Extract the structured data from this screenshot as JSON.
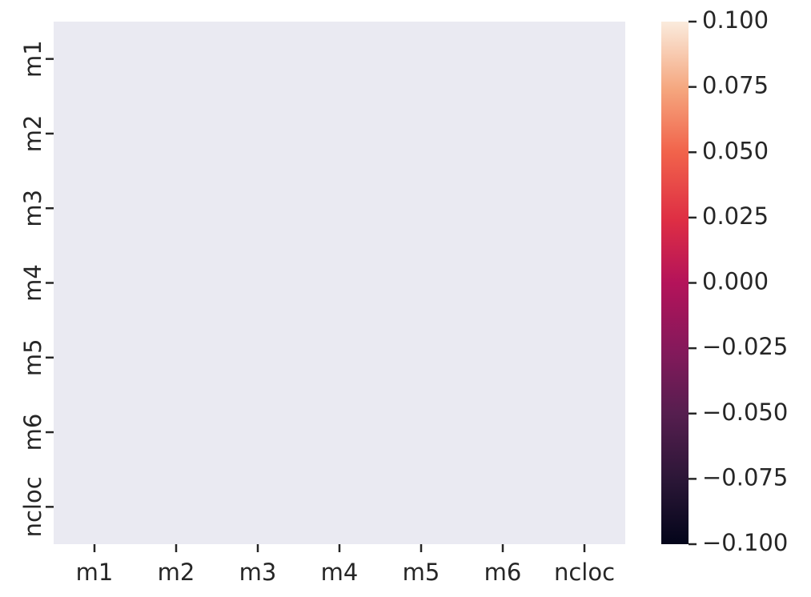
{
  "chart_data": {
    "type": "heatmap",
    "title": "",
    "xlabel": "",
    "ylabel": "",
    "x_categories": [
      "m1",
      "m2",
      "m3",
      "m4",
      "m5",
      "m6",
      "ncloc"
    ],
    "y_categories": [
      "m1",
      "m2",
      "m3",
      "m4",
      "m5",
      "m6",
      "ncloc"
    ],
    "values": [
      [
        null,
        null,
        null,
        null,
        null,
        null,
        null
      ],
      [
        null,
        null,
        null,
        null,
        null,
        null,
        null
      ],
      [
        null,
        null,
        null,
        null,
        null,
        null,
        null
      ],
      [
        null,
        null,
        null,
        null,
        null,
        null,
        null
      ],
      [
        null,
        null,
        null,
        null,
        null,
        null,
        null
      ],
      [
        null,
        null,
        null,
        null,
        null,
        null,
        null
      ],
      [
        null,
        null,
        null,
        null,
        null,
        null,
        null
      ]
    ],
    "colorbar": {
      "range": [
        -0.1,
        0.1
      ],
      "ticks": [
        0.1,
        0.075,
        0.05,
        0.025,
        0.0,
        -0.025,
        -0.05,
        -0.075,
        -0.1
      ],
      "tick_labels": [
        "0.100",
        "0.075",
        "0.050",
        "0.025",
        "0.000",
        "−0.025",
        "−0.050",
        "−0.075",
        "−0.100"
      ],
      "colormap": "rocket"
    },
    "background_color": "#eaeaf2",
    "tick_color": "#262626"
  }
}
